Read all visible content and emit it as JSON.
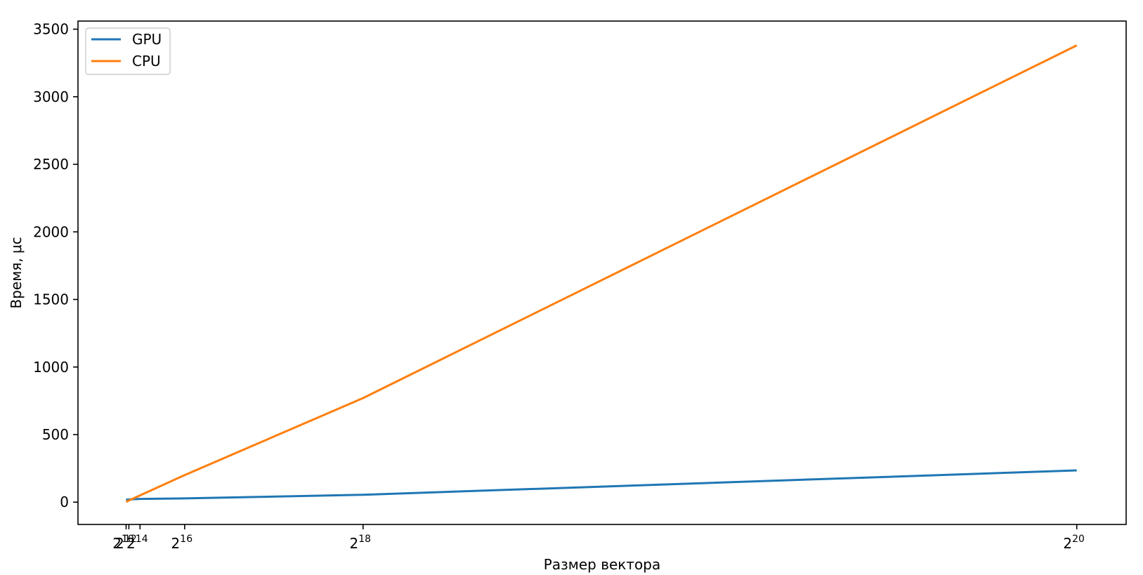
{
  "chart_data": {
    "type": "line",
    "title": "",
    "xlabel": "Размер вектора",
    "ylabel": "Время, μс",
    "x_scale": "linear",
    "x": [
      1024,
      4096,
      16384,
      65536,
      262144,
      1048576
    ],
    "x_ticks": [
      {
        "value": 1024,
        "base": "2",
        "exp": "10"
      },
      {
        "value": 4096,
        "base": "2",
        "exp": "12"
      },
      {
        "value": 16384,
        "base": "2",
        "exp": "14"
      },
      {
        "value": 65536,
        "base": "2",
        "exp": "16"
      },
      {
        "value": 262144,
        "base": "2",
        "exp": "18"
      },
      {
        "value": 1048576,
        "base": "2",
        "exp": "20"
      }
    ],
    "y_ticks": [
      0,
      500,
      1000,
      1500,
      2000,
      2500,
      3000,
      3500
    ],
    "y_tick_labels": [
      "0",
      "500",
      "1000",
      "1500",
      "2000",
      "2500",
      "3000",
      "3500"
    ],
    "xlim": [
      -52000,
      1103000
    ],
    "ylim": [
      -165,
      3560
    ],
    "grid": false,
    "legend_position": "top-left",
    "series": [
      {
        "name": "GPU",
        "color": "#1f77b4",
        "values": [
          18,
          20,
          24,
          28,
          55,
          235
        ]
      },
      {
        "name": "CPU",
        "color": "#ff7f0e",
        "values": [
          2,
          12,
          50,
          200,
          770,
          3380
        ]
      }
    ]
  }
}
